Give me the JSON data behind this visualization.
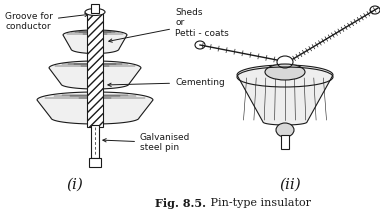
{
  "title": "Fig. 8.5. Pin-type insulator",
  "label_i": "(i)",
  "label_ii": "(ii)",
  "annotation_groove": "Groove for\nconductor",
  "annotation_sheds": "Sheds\nor\nPetti - coats",
  "annotation_cementing": "Cementing",
  "annotation_galvanised": "Galvanised\nsteel pin",
  "bg_color": "#ffffff",
  "line_color": "#1a1a1a",
  "fig_width": 3.8,
  "fig_height": 2.09,
  "dpi": 100
}
